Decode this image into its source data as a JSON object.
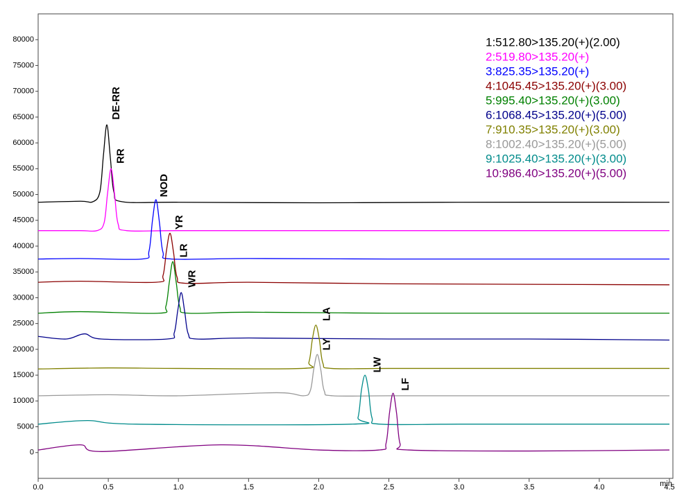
{
  "chart_data": {
    "type": "line",
    "xlabel": "min",
    "xlim": [
      0,
      4.5
    ],
    "ylim": [
      -5000,
      85000
    ],
    "xticks": [
      {
        "value": 0,
        "label": "0.0"
      },
      0.5,
      {
        "value": 1,
        "label": "1.0"
      },
      1.5,
      {
        "value": 2,
        "label": "2.0"
      },
      2.5,
      {
        "value": 3,
        "label": "3.0"
      },
      3.5,
      {
        "value": 4,
        "label": "4.0"
      },
      4.5
    ],
    "yticks": [
      0,
      5000,
      10000,
      15000,
      20000,
      25000,
      30000,
      35000,
      40000,
      45000,
      50000,
      55000,
      60000,
      65000,
      70000,
      75000,
      80000
    ],
    "legend": "top-right",
    "series": [
      {
        "name": "1:512.80>135.20(+)(2.00)",
        "color": "#000000",
        "x": [
          0,
          0.3,
          0.39,
          0.44,
          0.465,
          0.49,
          0.515,
          0.54,
          0.6,
          1.0,
          2.0,
          3.0,
          4.5
        ],
        "values": [
          48500,
          48700,
          48600,
          50500,
          57500,
          63500,
          57000,
          50500,
          48600,
          48500,
          48400,
          48500,
          48500
        ]
      },
      {
        "name": "2:519.80>135.20(+)",
        "color": "#ff00ff",
        "x": [
          0,
          0.3,
          0.42,
          0.47,
          0.495,
          0.52,
          0.545,
          0.57,
          0.63,
          1.0,
          2.0,
          3.0,
          4.5
        ],
        "values": [
          43000,
          43000,
          43000,
          44500,
          50300,
          55000,
          50000,
          44300,
          43000,
          43000,
          43000,
          43000,
          43000
        ]
      },
      {
        "name": "3:825.35>135.20(+)",
        "color": "#0000ff",
        "x": [
          0,
          0.3,
          0.74,
          0.79,
          0.815,
          0.84,
          0.865,
          0.89,
          0.95,
          1.5,
          2.5,
          3.5,
          4.5
        ],
        "values": [
          37500,
          37600,
          37500,
          39000,
          45000,
          49000,
          44500,
          38800,
          37500,
          37600,
          37500,
          37500,
          37500
        ]
      },
      {
        "name": "4:1045.45>135.20(+)(3.00)",
        "color": "#8b0000",
        "x": [
          0,
          0.3,
          0.84,
          0.89,
          0.915,
          0.94,
          0.965,
          0.99,
          1.05,
          1.5,
          2.5,
          3.5,
          4.5
        ],
        "values": [
          33000,
          33200,
          33000,
          34300,
          39200,
          42500,
          38800,
          34000,
          32800,
          33000,
          32700,
          32600,
          32500
        ]
      },
      {
        "name": "5:995.40>135.20(+)(3.00)",
        "color": "#008000",
        "x": [
          0,
          0.3,
          0.86,
          0.91,
          0.935,
          0.96,
          0.985,
          1.01,
          1.07,
          1.5,
          2.5,
          3.5,
          4.5
        ],
        "values": [
          27000,
          27300,
          27000,
          28300,
          33000,
          37000,
          32800,
          28200,
          27000,
          27200,
          27000,
          27000,
          27000
        ]
      },
      {
        "name": "6:1068.45>135.20(+)(5.00)",
        "color": "#00008b",
        "x": [
          0,
          0.2,
          0.33,
          0.45,
          0.92,
          0.97,
          0.995,
          1.02,
          1.045,
          1.07,
          1.13,
          1.5,
          2.5,
          3.5,
          4.5
        ],
        "values": [
          22500,
          22000,
          23000,
          22000,
          22000,
          23200,
          27500,
          31000,
          27200,
          23000,
          22000,
          22200,
          22000,
          22000,
          21800
        ]
      },
      {
        "name": "7:910.35>135.20(+)(3.00)",
        "color": "#808000",
        "x": [
          0,
          0.5,
          1.0,
          1.88,
          1.93,
          1.955,
          1.98,
          2.005,
          2.03,
          2.09,
          2.5,
          3.5,
          4.5
        ],
        "values": [
          16200,
          16400,
          16300,
          16300,
          17500,
          22000,
          24700,
          21800,
          17300,
          16300,
          16300,
          16300,
          16300
        ]
      },
      {
        "name": "8:1002.40>135.20(+)(5.00)",
        "color": "#999999",
        "x": [
          0,
          0.5,
          1.0,
          1.7,
          1.89,
          1.94,
          1.965,
          1.99,
          2.015,
          2.04,
          2.1,
          2.5,
          3.5,
          4.5
        ],
        "values": [
          11000,
          11200,
          11000,
          11600,
          11000,
          12000,
          16200,
          19000,
          16000,
          11900,
          11000,
          11000,
          11000,
          11000
        ]
      },
      {
        "name": "9:1025.40>135.20(+)(3.00)",
        "color": "#008b8b",
        "x": [
          0,
          0.35,
          0.7,
          2.23,
          2.28,
          2.305,
          2.33,
          2.355,
          2.38,
          2.44,
          3.0,
          4.0,
          4.5
        ],
        "values": [
          5500,
          6200,
          5500,
          5500,
          6800,
          12200,
          15000,
          12000,
          6700,
          5500,
          5500,
          5500,
          5500
        ]
      },
      {
        "name": "10:986.40>135.20(+)(5.00)",
        "color": "#800080",
        "x": [
          0,
          0.3,
          0.45,
          1.3,
          2.0,
          2.43,
          2.48,
          2.505,
          2.53,
          2.555,
          2.58,
          2.64,
          3.5,
          4.5
        ],
        "values": [
          500,
          1500,
          200,
          1500,
          500,
          500,
          1800,
          7800,
          11500,
          7600,
          1700,
          500,
          300,
          500
        ]
      }
    ],
    "annotations": [
      {
        "text": "DE-RR",
        "x": 0.56,
        "y": 64500
      },
      {
        "text": "RR",
        "x": 0.59,
        "y": 56000
      },
      {
        "text": "NOD",
        "x": 0.9,
        "y": 49500
      },
      {
        "text": "YR",
        "x": 1.01,
        "y": 43200
      },
      {
        "text": "LR",
        "x": 1.04,
        "y": 37800
      },
      {
        "text": "WR",
        "x": 1.1,
        "y": 32000
      },
      {
        "text": "LA",
        "x": 2.06,
        "y": 25500
      },
      {
        "text": "LY",
        "x": 2.06,
        "y": 19800
      },
      {
        "text": "LW",
        "x": 2.42,
        "y": 15500
      },
      {
        "text": "LF",
        "x": 2.62,
        "y": 12000
      }
    ]
  }
}
